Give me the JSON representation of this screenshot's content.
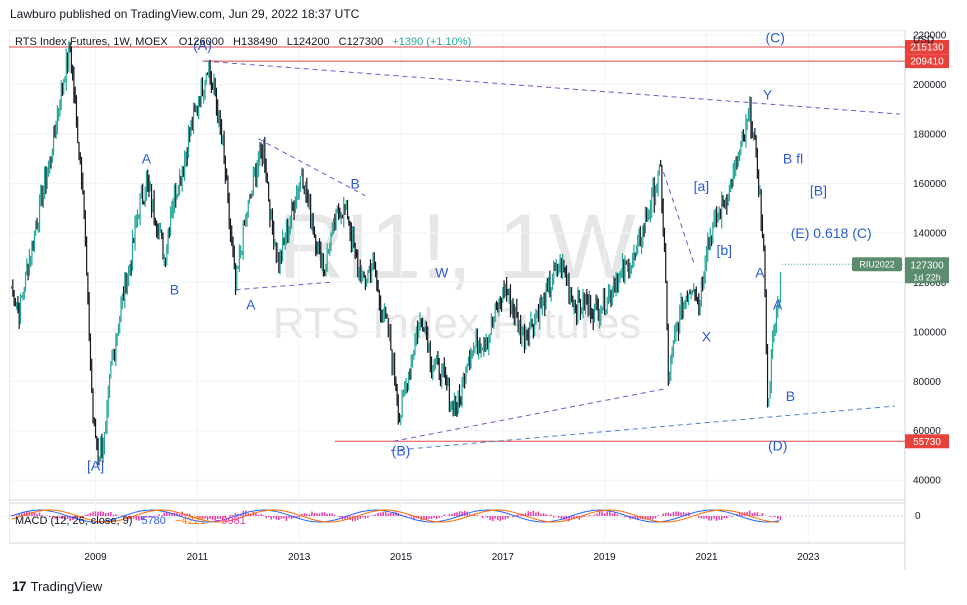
{
  "publisher": "Lawburo published on TradingView.com, Jun 29, 2022 18:37 UTC",
  "footer": {
    "brand": "TradingView"
  },
  "colors": {
    "up": "#26a69a",
    "down": "#131722",
    "wave_label": "#2a5bd7",
    "level_line": "#e04848",
    "trendline": "#6a5acd",
    "macd": "#2962ff",
    "signal": "#ff6d00",
    "hist": "#f23aa6",
    "price_badge": "#5b8c6e"
  },
  "chart_data": {
    "type": "line",
    "title": "RTS Index Futures, 1W, MOEX",
    "ohlc": {
      "open": "O126000",
      "high": "H138490",
      "low": "L124200",
      "close": "C127300",
      "change": "+1390 (+1.10%)"
    },
    "watermark": {
      "symbol": "RI1!, 1W",
      "name": "RTS Index Futures"
    },
    "currency": "USD",
    "x_ticks": [
      "2009",
      "2011",
      "2013",
      "2015",
      "2017",
      "2019",
      "2021",
      "2023"
    ],
    "y_ticks": [
      40000,
      60000,
      80000,
      100000,
      120000,
      140000,
      160000,
      180000,
      200000,
      220000
    ],
    "ylim": [
      32000,
      222000
    ],
    "xlim": [
      2007.3,
      2024.9
    ],
    "price_path": [
      [
        2007.35,
        118000
      ],
      [
        2007.5,
        108000
      ],
      [
        2007.7,
        130000
      ],
      [
        2007.9,
        150000
      ],
      [
        2008.1,
        168000
      ],
      [
        2008.3,
        195000
      ],
      [
        2008.5,
        215000
      ],
      [
        2008.6,
        190000
      ],
      [
        2008.75,
        160000
      ],
      [
        2008.85,
        110000
      ],
      [
        2008.95,
        65000
      ],
      [
        2009.05,
        50000
      ],
      [
        2009.2,
        58000
      ],
      [
        2009.3,
        85000
      ],
      [
        2009.5,
        110000
      ],
      [
        2009.7,
        130000
      ],
      [
        2009.85,
        150000
      ],
      [
        2010.0,
        160000
      ],
      [
        2010.2,
        145000
      ],
      [
        2010.35,
        130000
      ],
      [
        2010.5,
        152000
      ],
      [
        2010.7,
        165000
      ],
      [
        2010.9,
        185000
      ],
      [
        2011.05,
        195000
      ],
      [
        2011.2,
        208000
      ],
      [
        2011.35,
        195000
      ],
      [
        2011.5,
        175000
      ],
      [
        2011.65,
        140000
      ],
      [
        2011.75,
        118000
      ],
      [
        2011.9,
        140000
      ],
      [
        2012.05,
        155000
      ],
      [
        2012.2,
        170000
      ],
      [
        2012.3,
        175000
      ],
      [
        2012.45,
        145000
      ],
      [
        2012.6,
        128000
      ],
      [
        2012.75,
        140000
      ],
      [
        2012.9,
        152000
      ],
      [
        2013.05,
        165000
      ],
      [
        2013.2,
        150000
      ],
      [
        2013.35,
        135000
      ],
      [
        2013.5,
        125000
      ],
      [
        2013.65,
        140000
      ],
      [
        2013.8,
        150000
      ],
      [
        2013.95,
        148000
      ],
      [
        2014.1,
        130000
      ],
      [
        2014.25,
        120000
      ],
      [
        2014.45,
        128000
      ],
      [
        2014.6,
        110000
      ],
      [
        2014.75,
        100000
      ],
      [
        2014.9,
        80000
      ],
      [
        2014.97,
        65000
      ],
      [
        2015.1,
        78000
      ],
      [
        2015.3,
        100000
      ],
      [
        2015.45,
        105000
      ],
      [
        2015.6,
        88000
      ],
      [
        2015.75,
        85000
      ],
      [
        2015.9,
        78000
      ],
      [
        2016.0,
        70000
      ],
      [
        2016.15,
        72000
      ],
      [
        2016.3,
        90000
      ],
      [
        2016.5,
        95000
      ],
      [
        2016.7,
        98000
      ],
      [
        2016.9,
        110000
      ],
      [
        2017.05,
        118000
      ],
      [
        2017.2,
        110000
      ],
      [
        2017.4,
        98000
      ],
      [
        2017.6,
        105000
      ],
      [
        2017.8,
        112000
      ],
      [
        2018.0,
        122000
      ],
      [
        2018.15,
        128000
      ],
      [
        2018.3,
        118000
      ],
      [
        2018.45,
        110000
      ],
      [
        2018.6,
        112000
      ],
      [
        2018.8,
        108000
      ],
      [
        2019.0,
        112000
      ],
      [
        2019.2,
        120000
      ],
      [
        2019.4,
        125000
      ],
      [
        2019.6,
        130000
      ],
      [
        2019.8,
        145000
      ],
      [
        2020.0,
        158000
      ],
      [
        2020.1,
        165000
      ],
      [
        2020.2,
        120000
      ],
      [
        2020.25,
        80000
      ],
      [
        2020.4,
        100000
      ],
      [
        2020.6,
        115000
      ],
      [
        2020.75,
        120000
      ],
      [
        2020.85,
        110000
      ],
      [
        2021.0,
        135000
      ],
      [
        2021.2,
        145000
      ],
      [
        2021.4,
        155000
      ],
      [
        2021.6,
        168000
      ],
      [
        2021.75,
        178000
      ],
      [
        2021.85,
        190000
      ],
      [
        2021.95,
        175000
      ],
      [
        2022.05,
        155000
      ],
      [
        2022.15,
        120000
      ],
      [
        2022.2,
        70000
      ],
      [
        2022.3,
        95000
      ],
      [
        2022.4,
        110000
      ],
      [
        2022.48,
        128000
      ]
    ],
    "horizontal_levels": [
      {
        "price": 215130,
        "label": "215130"
      },
      {
        "price": 209410,
        "label": "209410"
      },
      {
        "price": 55730,
        "label": "55730"
      }
    ],
    "current_price": {
      "value": 127300,
      "label": "127300",
      "symbol": "RIU2022",
      "countdown": "1d 22h"
    },
    "trendlines": [
      {
        "from": [
          2011.15,
          209410
        ],
        "to": [
          2024.8,
          188000
        ],
        "style": "dash-purple"
      },
      {
        "from": [
          2012.2,
          178000
        ],
        "to": [
          2014.3,
          155000
        ],
        "style": "dash-purple"
      },
      {
        "from": [
          2011.75,
          117000
        ],
        "to": [
          2013.6,
          120000
        ],
        "style": "dash-purple"
      },
      {
        "from": [
          2014.85,
          55730
        ],
        "to": [
          2020.2,
          77000
        ],
        "style": "dash-purple"
      },
      {
        "from": [
          2014.8,
          52000
        ],
        "to": [
          2024.7,
          70000
        ],
        "style": "dash-blue"
      },
      {
        "from": [
          2020.1,
          168000
        ],
        "to": [
          2020.75,
          128000
        ],
        "style": "dash-purple"
      }
    ],
    "wave_labels": [
      {
        "text": "[A]",
        "x": 2009.0,
        "y": 44000
      },
      {
        "text": "A",
        "x": 2010.0,
        "y": 168000
      },
      {
        "text": "B",
        "x": 2010.55,
        "y": 115000
      },
      {
        "text": "(A)",
        "x": 2011.1,
        "y": 214000
      },
      {
        "text": "A",
        "x": 2012.05,
        "y": 109000
      },
      {
        "text": "B",
        "x": 2014.1,
        "y": 158000
      },
      {
        "text": "(B)",
        "x": 2015.0,
        "y": 50000
      },
      {
        "text": "W",
        "x": 2015.8,
        "y": 122000
      },
      {
        "text": "X",
        "x": 2021.0,
        "y": 96000
      },
      {
        "text": "[a]",
        "x": 2020.9,
        "y": 157000
      },
      {
        "text": "[b]",
        "x": 2021.35,
        "y": 131000
      },
      {
        "text": "(C)",
        "x": 2022.35,
        "y": 217000
      },
      {
        "text": "Y",
        "x": 2022.2,
        "y": 194000
      },
      {
        "text": "B fl",
        "x": 2022.7,
        "y": 168000
      },
      {
        "text": "[B]",
        "x": 2023.2,
        "y": 155000
      },
      {
        "text": "(E) 0.618 (C)",
        "x": 2023.45,
        "y": 138000
      },
      {
        "text": "A",
        "x": 2022.05,
        "y": 122000
      },
      {
        "text": "A",
        "x": 2022.4,
        "y": 109000
      },
      {
        "text": "B",
        "x": 2022.65,
        "y": 72000
      },
      {
        "text": "(D)",
        "x": 2022.4,
        "y": 52000
      }
    ],
    "macd": {
      "legend": "MACD (12, 26, close, 9)",
      "values": [
        "5780",
        "−4221",
        "−9981"
      ],
      "zero_tick": "0"
    }
  }
}
